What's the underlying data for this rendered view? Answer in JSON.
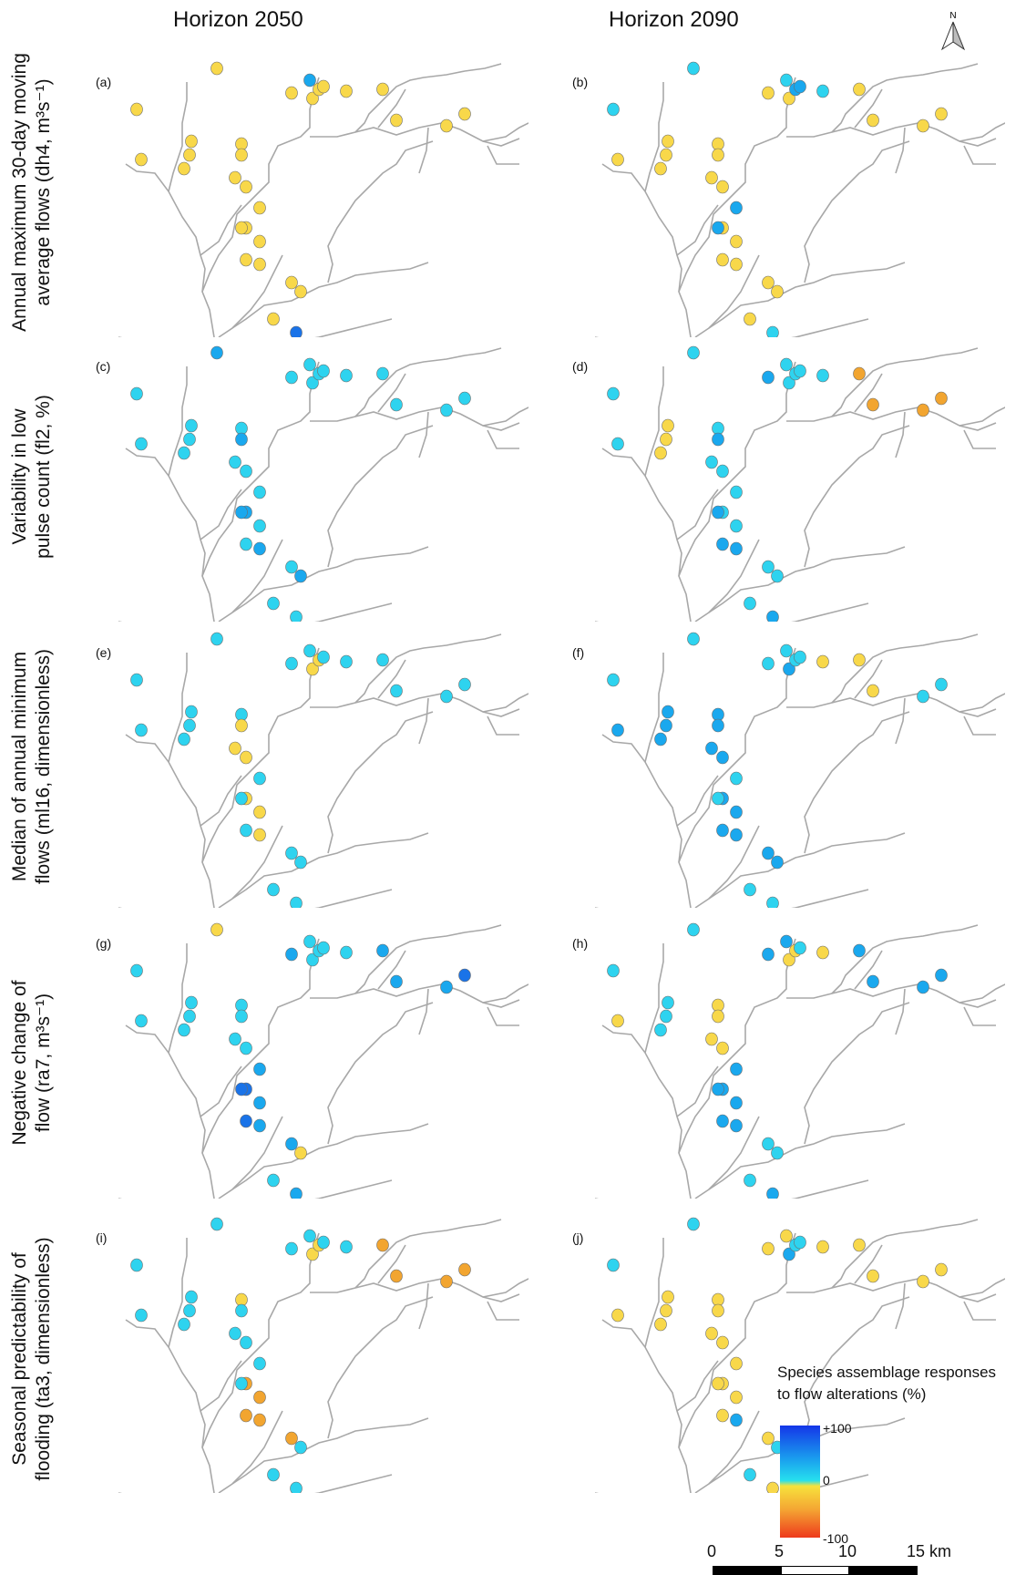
{
  "columns": {
    "left": "Horizon 2050",
    "right": "Horizon 2090"
  },
  "rows": [
    {
      "line1": "Annual maximum 30-day moving",
      "line2": "average flows (dh4, m³s⁻¹)"
    },
    {
      "line1": "Variability in low",
      "line2": "pulse count (fl2, %)"
    },
    {
      "line1": "Median of annual minimum",
      "line2": "flows (ml16, dimensionless)"
    },
    {
      "line1": "Negative change of",
      "line2": "flow (ra7, m³s⁻¹)"
    },
    {
      "line1": "Seasonal predictability of",
      "line2": "flooding (ta3, dimensionless)"
    }
  ],
  "panels": [
    {
      "label": "(a)",
      "sites": [
        "y",
        "y",
        "y",
        "y",
        "y",
        "y",
        "y",
        "y",
        "y",
        "y",
        "y",
        "y",
        "y",
        "y",
        "y",
        "y",
        "y",
        "y",
        "y",
        "y",
        "y",
        "y",
        "b",
        "y",
        "l",
        "y",
        "y",
        "y",
        "y",
        "y"
      ]
    },
    {
      "label": "(b)",
      "sites": [
        "c",
        "c",
        "y",
        "y",
        "y",
        "y",
        "y",
        "y",
        "y",
        "y",
        "y",
        "y",
        "y",
        "y",
        "l",
        "l",
        "l",
        "l",
        "y",
        "y",
        "y",
        "y",
        "c",
        "y",
        "c",
        "c",
        "y",
        "y",
        "y",
        "y"
      ]
    },
    {
      "label": "(c)",
      "sites": [
        "l",
        "c",
        "c",
        "c",
        "c",
        "c",
        "c",
        "l",
        "c",
        "c",
        "l",
        "c",
        "l",
        "c",
        "c",
        "c",
        "c",
        "l",
        "c",
        "c",
        "l",
        "c",
        "c",
        "c",
        "c",
        "c",
        "c",
        "c",
        "c",
        "c"
      ]
    },
    {
      "label": "(d)",
      "sites": [
        "c",
        "c",
        "c",
        "y",
        "y",
        "y",
        "c",
        "l",
        "c",
        "c",
        "c",
        "c",
        "l",
        "c",
        "c",
        "c",
        "c",
        "l",
        "l",
        "c",
        "c",
        "c",
        "l",
        "l",
        "c",
        "c",
        "o",
        "o",
        "o",
        "o"
      ]
    },
    {
      "label": "(e)",
      "sites": [
        "c",
        "c",
        "c",
        "c",
        "c",
        "c",
        "c",
        "y",
        "y",
        "y",
        "y",
        "y",
        "y",
        "y",
        "y",
        "c",
        "c",
        "c",
        "c",
        "c",
        "c",
        "c",
        "c",
        "c",
        "c",
        "c",
        "c",
        "c",
        "c",
        "c"
      ]
    },
    {
      "label": "(f)",
      "sites": [
        "c",
        "c",
        "l",
        "l",
        "l",
        "l",
        "l",
        "l",
        "l",
        "l",
        "l",
        "l",
        "l",
        "l",
        "c",
        "c",
        "c",
        "c",
        "l",
        "l",
        "l",
        "c",
        "c",
        "c",
        "c",
        "y",
        "y",
        "y",
        "c",
        "c"
      ]
    },
    {
      "label": "(g)",
      "sites": [
        "y",
        "c",
        "c",
        "c",
        "c",
        "c",
        "c",
        "c",
        "c",
        "c",
        "b",
        "l",
        "l",
        "c",
        "c",
        "c",
        "l",
        "b",
        "b",
        "l",
        "y",
        "c",
        "l",
        "l",
        "c",
        "c",
        "l",
        "l",
        "l",
        "b"
      ]
    },
    {
      "label": "(h)",
      "sites": [
        "c",
        "c",
        "y",
        "c",
        "c",
        "c",
        "y",
        "y",
        "y",
        "y",
        "l",
        "l",
        "l",
        "y",
        "y",
        "c",
        "l",
        "l",
        "l",
        "c",
        "c",
        "c",
        "l",
        "l",
        "l",
        "y",
        "l",
        "l",
        "l",
        "l"
      ]
    },
    {
      "label": "(i)",
      "sites": [
        "c",
        "c",
        "c",
        "c",
        "c",
        "c",
        "y",
        "c",
        "c",
        "c",
        "o",
        "o",
        "o",
        "y",
        "y",
        "c",
        "c",
        "c",
        "o",
        "o",
        "c",
        "c",
        "c",
        "c",
        "c",
        "c",
        "o",
        "o",
        "o",
        "o"
      ]
    },
    {
      "label": "(j)",
      "sites": [
        "c",
        "c",
        "y",
        "y",
        "y",
        "y",
        "y",
        "y",
        "y",
        "y",
        "y",
        "y",
        "l",
        "l",
        "c",
        "c",
        "y",
        "y",
        "y",
        "y",
        "c",
        "c",
        "y",
        "y",
        "y",
        "y",
        "y",
        "y",
        "y",
        "y"
      ]
    }
  ],
  "legend": {
    "title_line1": "Species assemblage responses",
    "title_line2": "to flow alterations (%)",
    "max": "+100",
    "mid": "0",
    "min": "-100"
  },
  "scale": {
    "labels": [
      "0",
      "5",
      "10",
      "15 km"
    ]
  },
  "north_label": "N",
  "colors": {
    "y": "#f8d84a",
    "c": "#2ed3ef",
    "l": "#1aa8ee",
    "b": "#1a73e8",
    "o": "#f2a530",
    "river": "#a8a8a8",
    "outline": "#6b6b6b"
  }
}
